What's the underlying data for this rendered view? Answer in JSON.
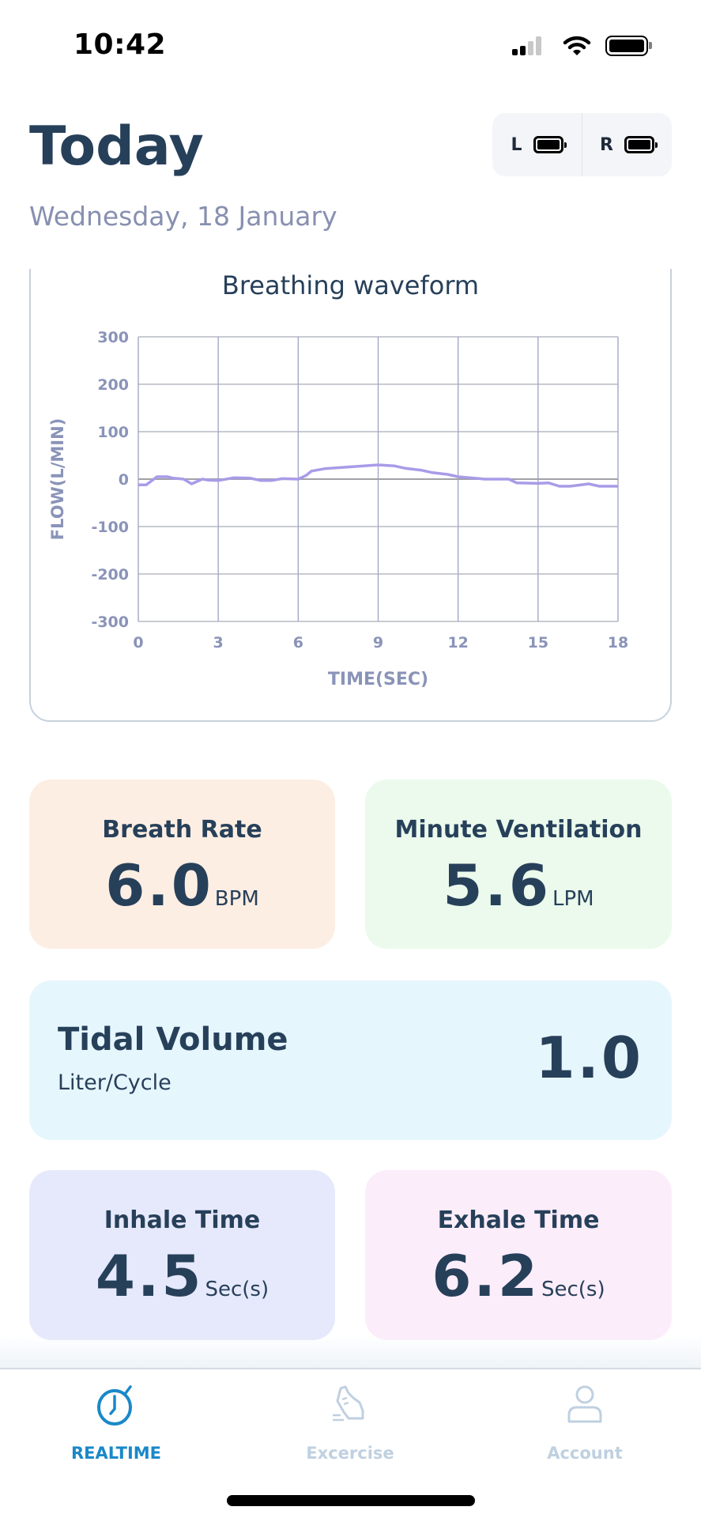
{
  "status_bar": {
    "time": "10:42"
  },
  "header": {
    "title": "Today",
    "date": "Wednesday, 18 January"
  },
  "devices": [
    {
      "side": "L",
      "battery_level": 1.0
    },
    {
      "side": "R",
      "battery_level": 1.0
    }
  ],
  "chart_data": {
    "type": "line",
    "title": "Breathing waveform",
    "xlabel": "TIME(SEC)",
    "ylabel": "FLOW(L/MIN)",
    "xlim": [
      0,
      18
    ],
    "ylim": [
      -300,
      300
    ],
    "xticks": [
      "0",
      "3",
      "6",
      "9",
      "12",
      "15",
      "18"
    ],
    "yticks": [
      "300",
      "200",
      "100",
      "0",
      "-100",
      "-200",
      "-300"
    ],
    "grid": true,
    "series": [
      {
        "name": "flow",
        "color": "#a99be8",
        "x": [
          0,
          0.3,
          0.7,
          1.1,
          1.3,
          1.7,
          2.0,
          2.4,
          2.6,
          3.0,
          3.6,
          4.2,
          4.6,
          5.0,
          5.4,
          6.0,
          6.3,
          6.5,
          7.0,
          8.0,
          9.0,
          9.6,
          10.0,
          10.6,
          11.0,
          11.6,
          12.0,
          12.6,
          13.0,
          13.9,
          14.2,
          15.0,
          15.4,
          15.8,
          16.2,
          16.5,
          16.9,
          17.3,
          17.7,
          18.0
        ],
        "y": [
          -12,
          -12,
          5,
          5,
          2,
          0,
          -10,
          0,
          -2,
          -3,
          3,
          2,
          -3,
          -3,
          1,
          0,
          8,
          17,
          22,
          26,
          30,
          28,
          23,
          19,
          14,
          10,
          5,
          2,
          0,
          0,
          -8,
          -9,
          -8,
          -15,
          -15,
          -13,
          -10,
          -15,
          -15,
          -15
        ]
      }
    ]
  },
  "metrics": {
    "breath_rate": {
      "label": "Breath Rate",
      "value": "6.0",
      "unit": "BPM"
    },
    "minute_ventilation": {
      "label": "Minute Ventilation",
      "value": "5.6",
      "unit": "LPM"
    },
    "tidal_volume": {
      "label": "Tidal Volume",
      "sublabel": "Liter/Cycle",
      "value": "1.0"
    },
    "inhale_time": {
      "label": "Inhale Time",
      "value": "4.5",
      "unit": "Sec(s)"
    },
    "exhale_time": {
      "label": "Exhale Time",
      "value": "6.2",
      "unit": "Sec(s)"
    }
  },
  "tabs": [
    {
      "label": "REALTIME",
      "icon": "stopwatch-icon",
      "active": true
    },
    {
      "label": "Excercise",
      "icon": "sneaker-icon",
      "active": false
    },
    {
      "label": "Account",
      "icon": "person-icon",
      "active": false
    }
  ],
  "colors": {
    "active_tab": "#1a88c9",
    "inactive_tab": "#bfd0e0",
    "text": "#27405a"
  }
}
